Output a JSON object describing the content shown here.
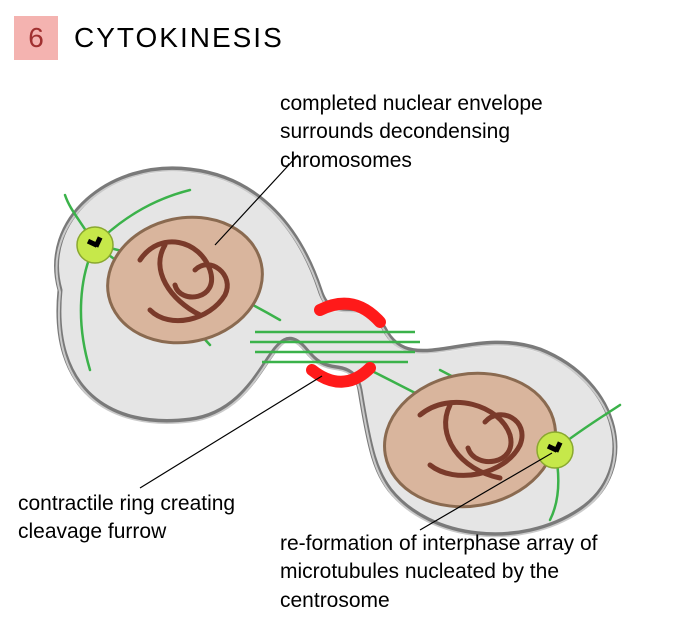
{
  "header": {
    "number": "6",
    "title": "CYTOKINESIS",
    "badge_bg": "#f4b3b0",
    "badge_text_color": "#a03030",
    "title_color": "#000000"
  },
  "labels": {
    "top": "completed nuclear envelope surrounds decondensing chromosomes",
    "bottom_left": "contractile ring creating cleavage furrow",
    "bottom_right": "re-formation of interphase array of microtubules nucleated by the centrosome"
  },
  "diagram": {
    "type": "infographic",
    "background_color": "#ffffff",
    "cell_fill": "#e5e5e5",
    "cell_stroke": "#7a7a7a",
    "cell_stroke_width": 5,
    "nucleus_fill": "#d9b59d",
    "nucleus_stroke": "#8a6a50",
    "nucleus_stroke_width": 3,
    "chromatin_color": "#7a3a2a",
    "chromatin_width": 5,
    "microtubule_color": "#3bb24a",
    "microtubule_width": 2.5,
    "centrosome_fill": "#c6e84a",
    "centrosome_stroke": "#8aa830",
    "centriole_color": "#000000",
    "contractile_ring_color": "#ff1a1a",
    "leader_line_color": "#000000",
    "leader_line_width": 1.2,
    "label_fontsize": 21,
    "label_color": "#000000"
  }
}
